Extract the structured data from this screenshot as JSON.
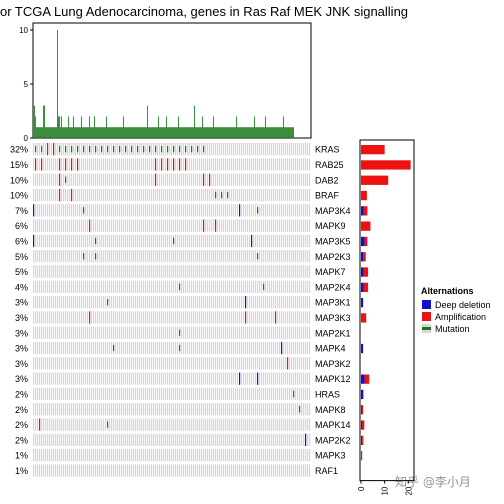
{
  "chart_data": {
    "type": "oncoprint",
    "title": "or TCGA Lung Adenocarcinoma, genes in Ras Raf MEK JNK signalling",
    "top_bar": {
      "type": "bar",
      "ylim": [
        0,
        10
      ],
      "y_ticks": [
        "0",
        "5",
        "10"
      ],
      "color": "#1a7a1a",
      "values": [
        3,
        3,
        2,
        1,
        1,
        1,
        1,
        1,
        1,
        1,
        3,
        3,
        1,
        1,
        1,
        1,
        1,
        1,
        1,
        1,
        1,
        1,
        1,
        1,
        10,
        2,
        2,
        1,
        2,
        1,
        1,
        1,
        1,
        1,
        1,
        2,
        1,
        1,
        1,
        1,
        2,
        1,
        1,
        1,
        1,
        1,
        1,
        1,
        2,
        1,
        1,
        1,
        1,
        1,
        1,
        1,
        2,
        1,
        1,
        1,
        1,
        2,
        1,
        1,
        1,
        1,
        1,
        1,
        1,
        1,
        1,
        1,
        1,
        2,
        1,
        1,
        1,
        1,
        1,
        1,
        1,
        1,
        1,
        1,
        1,
        1,
        1,
        1,
        1,
        1,
        2,
        1,
        1,
        1,
        1,
        1,
        1,
        1,
        1,
        1,
        1,
        1,
        1,
        1,
        1,
        1,
        1,
        1,
        1,
        1,
        1,
        1,
        1,
        1,
        3,
        1,
        1,
        1,
        1,
        1,
        1,
        1,
        1,
        1,
        1,
        2,
        1,
        1,
        1,
        1,
        1,
        1,
        1,
        2,
        1,
        1,
        1,
        1,
        1,
        1,
        1,
        1,
        1,
        1,
        1,
        2,
        1,
        1,
        1,
        1,
        1,
        1,
        1,
        1,
        1,
        1,
        1,
        1,
        1,
        1,
        1,
        3,
        1,
        1,
        1,
        1,
        1,
        1,
        1,
        2,
        1,
        1,
        1,
        1,
        1,
        1,
        1,
        1,
        1,
        1,
        2,
        1,
        1,
        1,
        1,
        1,
        1,
        1,
        1,
        1,
        1,
        1,
        1,
        1,
        1,
        1,
        1,
        1,
        1,
        1,
        1,
        1,
        1,
        2,
        1,
        1,
        1,
        1,
        1,
        1,
        1,
        1,
        1,
        1,
        1,
        1,
        1,
        1,
        1,
        1,
        1,
        2,
        1,
        1,
        1,
        1,
        1,
        1,
        1,
        1,
        1,
        1,
        2,
        1,
        1,
        1,
        1,
        1,
        1,
        1,
        1,
        1,
        1,
        1,
        1,
        1,
        1,
        1,
        1,
        1,
        2,
        1,
        1,
        1,
        1,
        1,
        1,
        1,
        1,
        1,
        1
      ]
    },
    "genes": [
      {
        "name": "KRAS",
        "percent": "32%",
        "amp": 10,
        "del": 0,
        "events": [
          [
            2,
            "mut"
          ],
          [
            8,
            "mut"
          ],
          [
            14,
            "amp"
          ],
          [
            20,
            "amp"
          ],
          [
            26,
            "mut"
          ],
          [
            32,
            "mut"
          ],
          [
            38,
            "mut"
          ],
          [
            44,
            "mut"
          ],
          [
            50,
            "mut"
          ],
          [
            56,
            "mut"
          ],
          [
            62,
            "mut"
          ],
          [
            68,
            "mut"
          ],
          [
            74,
            "mut"
          ],
          [
            80,
            "mut"
          ],
          [
            86,
            "mut"
          ],
          [
            92,
            "mut"
          ],
          [
            98,
            "mut"
          ],
          [
            104,
            "mut"
          ],
          [
            110,
            "mut"
          ],
          [
            116,
            "mut"
          ],
          [
            122,
            "mut"
          ],
          [
            128,
            "mut"
          ],
          [
            134,
            "mut"
          ],
          [
            140,
            "mut"
          ],
          [
            146,
            "mut"
          ],
          [
            152,
            "mut"
          ],
          [
            158,
            "mut"
          ],
          [
            164,
            "mut"
          ],
          [
            170,
            "mut"
          ]
        ]
      },
      {
        "name": "RAB25",
        "percent": "15%",
        "amp": 21,
        "del": 0,
        "events": [
          [
            2,
            "amp"
          ],
          [
            8,
            "amp"
          ],
          [
            26,
            "amp"
          ],
          [
            32,
            "amp"
          ],
          [
            38,
            "amp"
          ],
          [
            44,
            "amp"
          ],
          [
            122,
            "amp"
          ],
          [
            128,
            "amp"
          ],
          [
            134,
            "amp"
          ],
          [
            140,
            "amp"
          ],
          [
            146,
            "amp"
          ],
          [
            152,
            "amp"
          ]
        ]
      },
      {
        "name": "DAB2",
        "percent": "10%",
        "amp": 11.5,
        "del": 0,
        "events": [
          [
            26,
            "amp"
          ],
          [
            32,
            "mut"
          ],
          [
            122,
            "amp"
          ],
          [
            170,
            "amp"
          ],
          [
            176,
            "amp"
          ]
        ]
      },
      {
        "name": "BRAF",
        "percent": "10%",
        "amp": 2.5,
        "del": 0,
        "events": [
          [
            26,
            "amp"
          ],
          [
            38,
            "amp"
          ],
          [
            182,
            "mut"
          ],
          [
            188,
            "mut"
          ],
          [
            194,
            "mut"
          ]
        ]
      },
      {
        "name": "MAP3K4",
        "percent": "7%",
        "amp": 1.5,
        "del": 1.2,
        "events": [
          [
            0,
            "del"
          ],
          [
            50,
            "mut"
          ],
          [
            206,
            "del"
          ],
          [
            224,
            "mut"
          ]
        ]
      },
      {
        "name": "MAPK9",
        "percent": "6%",
        "amp": 4,
        "del": 0,
        "events": [
          [
            56,
            "amp"
          ],
          [
            170,
            "amp"
          ],
          [
            182,
            "amp"
          ]
        ]
      },
      {
        "name": "MAP3K5",
        "percent": "6%",
        "amp": 1.2,
        "del": 1.5,
        "events": [
          [
            0,
            "del"
          ],
          [
            62,
            "mut"
          ],
          [
            140,
            "mut"
          ],
          [
            218,
            "del"
          ]
        ]
      },
      {
        "name": "MAP2K3",
        "percent": "5%",
        "amp": 1,
        "del": 1,
        "events": [
          [
            50,
            "mut"
          ],
          [
            62,
            "mut"
          ],
          [
            224,
            "mut"
          ]
        ]
      },
      {
        "name": "MAPK7",
        "percent": "5%",
        "amp": 1.8,
        "del": 1.2,
        "events": []
      },
      {
        "name": "MAP2K4",
        "percent": "4%",
        "amp": 1.8,
        "del": 1.2,
        "events": [
          [
            146,
            "mut"
          ],
          [
            230,
            "mut"
          ]
        ]
      },
      {
        "name": "MAP3K1",
        "percent": "3%",
        "amp": 0,
        "del": 0.9,
        "events": [
          [
            74,
            "mut"
          ],
          [
            212,
            "del"
          ]
        ]
      },
      {
        "name": "MAP3K3",
        "percent": "3%",
        "amp": 2.2,
        "del": 0,
        "events": [
          [
            56,
            "amp"
          ],
          [
            212,
            "amp"
          ],
          [
            242,
            "amp"
          ]
        ]
      },
      {
        "name": "MAP2K1",
        "percent": "3%",
        "amp": 0,
        "del": 0,
        "events": [
          [
            146,
            "mut"
          ]
        ]
      },
      {
        "name": "MAPK4",
        "percent": "3%",
        "amp": 0,
        "del": 0.9,
        "events": [
          [
            80,
            "mut"
          ],
          [
            146,
            "mut"
          ],
          [
            248,
            "del"
          ]
        ]
      },
      {
        "name": "MAP3K2",
        "percent": "3%",
        "amp": 0,
        "del": 0,
        "events": [
          [
            254,
            "amp"
          ]
        ]
      },
      {
        "name": "MAPK12",
        "percent": "3%",
        "amp": 2,
        "del": 1.5,
        "events": [
          [
            206,
            "del"
          ],
          [
            224,
            "del"
          ]
        ]
      },
      {
        "name": "HRAS",
        "percent": "2%",
        "amp": 0,
        "del": 1,
        "events": [
          [
            260,
            "mut"
          ]
        ]
      },
      {
        "name": "MAPK8",
        "percent": "2%",
        "amp": 0.5,
        "del": 0.4,
        "events": [
          [
            266,
            "mut"
          ]
        ]
      },
      {
        "name": "MAPK14",
        "percent": "2%",
        "amp": 1,
        "del": 0.4,
        "events": [
          [
            6,
            "amp"
          ],
          [
            74,
            "mut"
          ]
        ]
      },
      {
        "name": "MAP2K2",
        "percent": "2%",
        "amp": 0.5,
        "del": 0.5,
        "events": [
          [
            272,
            "del"
          ]
        ]
      },
      {
        "name": "MAPK3",
        "percent": "1%",
        "amp": 0.5,
        "del": 0,
        "events": []
      },
      {
        "name": "RAF1",
        "percent": "1%",
        "amp": 0,
        "del": 0,
        "events": []
      }
    ],
    "side_bar": {
      "type": "bar",
      "xlim": [
        0,
        22
      ],
      "x_ticks": [
        "0",
        "10",
        "20"
      ]
    },
    "legend": {
      "title": "Alternations",
      "placement": "right",
      "entries": [
        {
          "label": "Deep deletion",
          "color": "#1111cc"
        },
        {
          "label": "Amplification",
          "color": "#ee1111"
        },
        {
          "label": "Mutation",
          "color": "#1a7a1a"
        }
      ]
    },
    "colors": {
      "mutation": "#1a7a1a",
      "amplification": "#ee1111",
      "deletion": "#1111cc",
      "cell": "#d6d6d6",
      "side_amp": "#ee1111",
      "side_del": "#1111cc"
    }
  },
  "watermark": "知乎 @李小月"
}
